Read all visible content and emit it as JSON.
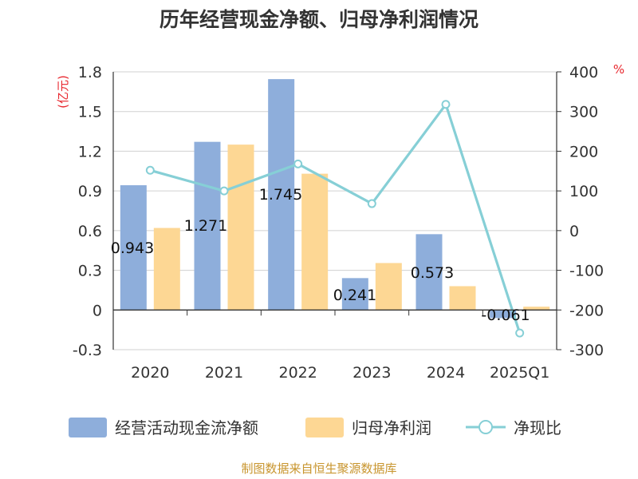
{
  "chart_data": {
    "type": "bar+line",
    "title": "历年经营现金净额、归母净利润情况",
    "categories": [
      "2020",
      "2021",
      "2022",
      "2023",
      "2024",
      "2025Q1"
    ],
    "y_left": {
      "unit": "(亿元)",
      "ylim": [
        -0.3,
        1.8
      ],
      "ticks": [
        "1.8",
        "1.5",
        "1.2",
        "0.9",
        "0.6",
        "0.3",
        "0",
        "-0.3"
      ]
    },
    "y_right": {
      "unit": "%",
      "ylim": [
        -300,
        400
      ],
      "ticks": [
        "400",
        "300",
        "200",
        "100",
        "0",
        "-100",
        "-200",
        "-300"
      ]
    },
    "series": [
      {
        "name": "经营活动现金流净额",
        "type": "bar",
        "axis": "left",
        "color": "#8eaedb",
        "values": [
          0.943,
          1.271,
          1.745,
          0.241,
          0.573,
          -0.061
        ],
        "labels": [
          "0.943",
          "1.271",
          "1.745",
          "0.241",
          "0.573",
          "-0.061"
        ]
      },
      {
        "name": "归母净利润",
        "type": "bar",
        "axis": "left",
        "color": "#fdd794",
        "values": [
          0.62,
          1.25,
          1.03,
          0.355,
          0.18,
          0.025
        ]
      },
      {
        "name": "净现比",
        "type": "line",
        "axis": "right",
        "color": "#86cfd6",
        "values": [
          152,
          100,
          168,
          68,
          318,
          -258
        ]
      }
    ],
    "grid": true,
    "legend_position": "bottom"
  },
  "source": "制图数据来自恒生聚源数据库"
}
